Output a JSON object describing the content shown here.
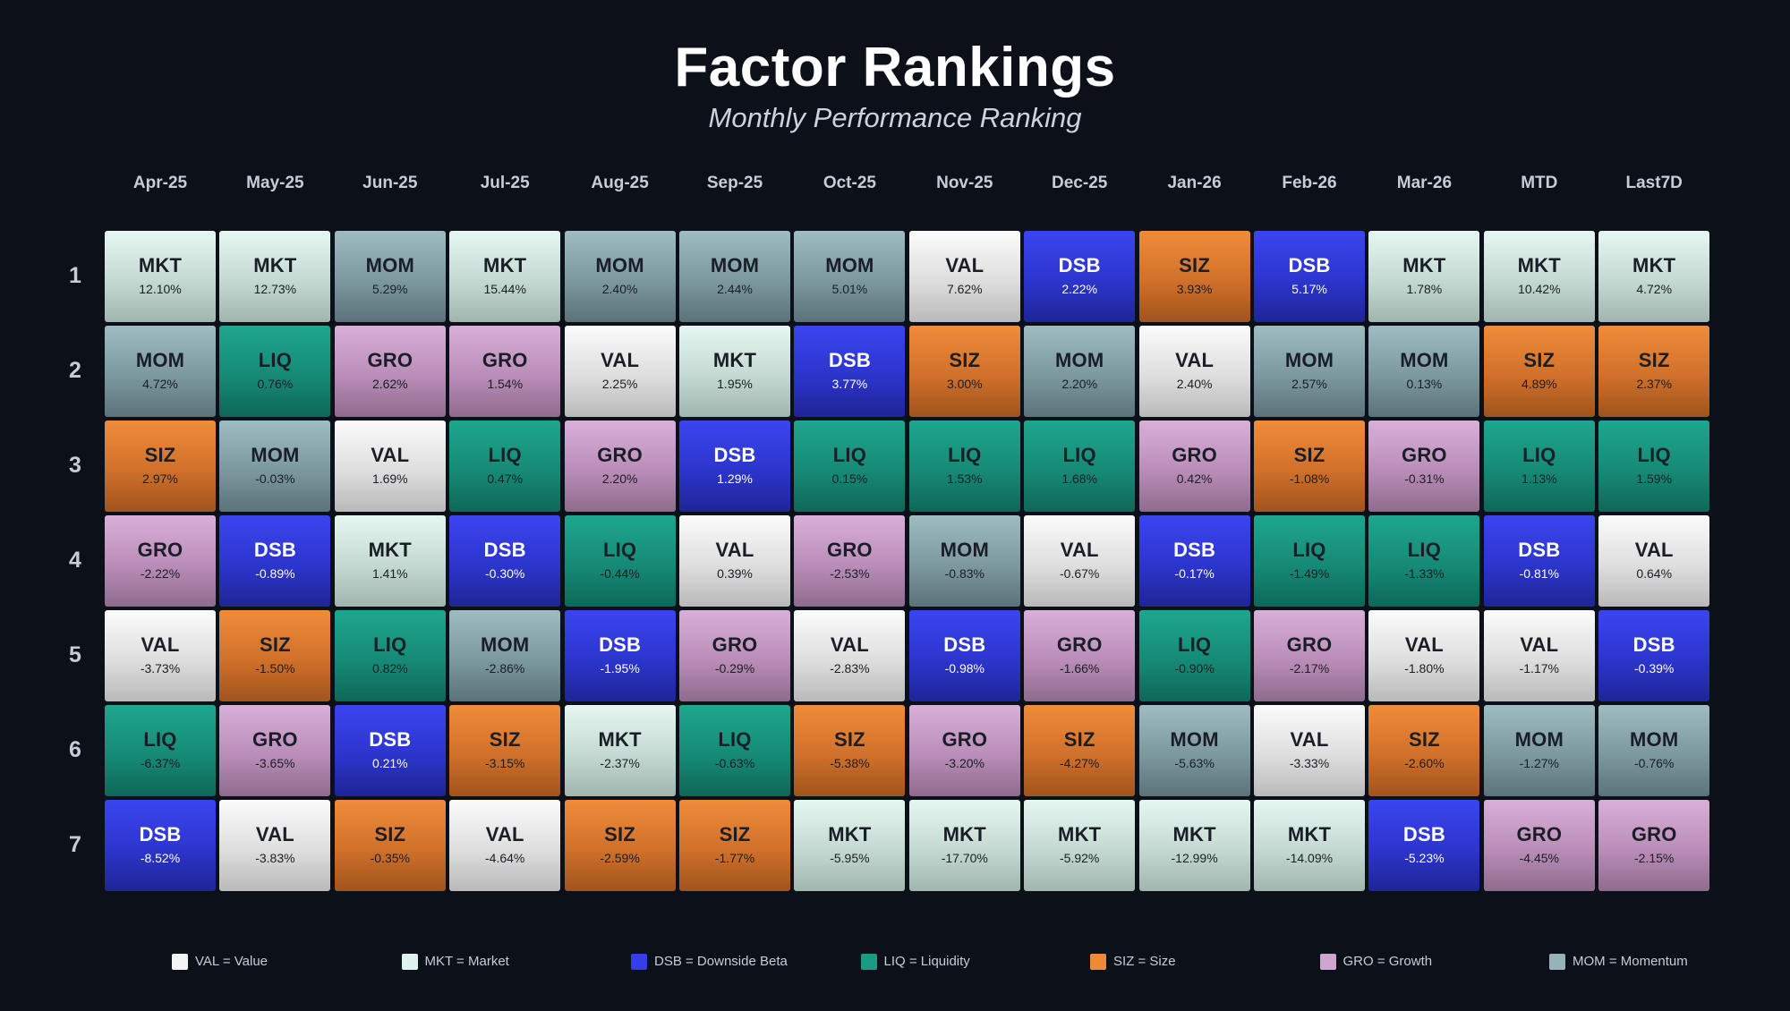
{
  "chart_data": {
    "type": "table",
    "title": "Factor Rankings",
    "subtitle": "Monthly Performance Ranking",
    "columns": [
      "Apr-25",
      "May-25",
      "Jun-25",
      "Jul-25",
      "Aug-25",
      "Sep-25",
      "Oct-25",
      "Nov-25",
      "Dec-25",
      "Jan-26",
      "Feb-26",
      "Mar-26",
      "MTD",
      "Last7D"
    ],
    "ranks": [
      "1",
      "2",
      "3",
      "4",
      "5",
      "6",
      "7"
    ],
    "cells": [
      [
        {
          "factor": "MKT",
          "value": "12.10%"
        },
        {
          "factor": "MKT",
          "value": "12.73%"
        },
        {
          "factor": "MOM",
          "value": "5.29%"
        },
        {
          "factor": "MKT",
          "value": "15.44%"
        },
        {
          "factor": "MOM",
          "value": "2.40%"
        },
        {
          "factor": "MOM",
          "value": "2.44%"
        },
        {
          "factor": "MOM",
          "value": "5.01%"
        },
        {
          "factor": "VAL",
          "value": "7.62%"
        },
        {
          "factor": "DSB",
          "value": "2.22%"
        },
        {
          "factor": "SIZ",
          "value": "3.93%"
        },
        {
          "factor": "DSB",
          "value": "5.17%"
        },
        {
          "factor": "MKT",
          "value": "1.78%"
        },
        {
          "factor": "MKT",
          "value": "10.42%"
        },
        {
          "factor": "MKT",
          "value": "4.72%"
        }
      ],
      [
        {
          "factor": "MOM",
          "value": "4.72%"
        },
        {
          "factor": "LIQ",
          "value": "0.76%"
        },
        {
          "factor": "GRO",
          "value": "2.62%"
        },
        {
          "factor": "GRO",
          "value": "1.54%"
        },
        {
          "factor": "VAL",
          "value": "2.25%"
        },
        {
          "factor": "MKT",
          "value": "1.95%"
        },
        {
          "factor": "DSB",
          "value": "3.77%"
        },
        {
          "factor": "SIZ",
          "value": "3.00%"
        },
        {
          "factor": "MOM",
          "value": "2.20%"
        },
        {
          "factor": "VAL",
          "value": "2.40%"
        },
        {
          "factor": "MOM",
          "value": "2.57%"
        },
        {
          "factor": "MOM",
          "value": "0.13%"
        },
        {
          "factor": "SIZ",
          "value": "4.89%"
        },
        {
          "factor": "SIZ",
          "value": "2.37%"
        }
      ],
      [
        {
          "factor": "SIZ",
          "value": "2.97%"
        },
        {
          "factor": "MOM",
          "value": "-0.03%"
        },
        {
          "factor": "VAL",
          "value": "1.69%"
        },
        {
          "factor": "LIQ",
          "value": "0.47%"
        },
        {
          "factor": "GRO",
          "value": "2.20%"
        },
        {
          "factor": "DSB",
          "value": "1.29%"
        },
        {
          "factor": "LIQ",
          "value": "0.15%"
        },
        {
          "factor": "LIQ",
          "value": "1.53%"
        },
        {
          "factor": "LIQ",
          "value": "1.68%"
        },
        {
          "factor": "GRO",
          "value": "0.42%"
        },
        {
          "factor": "SIZ",
          "value": "-1.08%"
        },
        {
          "factor": "GRO",
          "value": "-0.31%"
        },
        {
          "factor": "LIQ",
          "value": "1.13%"
        },
        {
          "factor": "LIQ",
          "value": "1.59%"
        }
      ],
      [
        {
          "factor": "GRO",
          "value": "-2.22%"
        },
        {
          "factor": "DSB",
          "value": "-0.89%"
        },
        {
          "factor": "MKT",
          "value": "1.41%"
        },
        {
          "factor": "DSB",
          "value": "-0.30%"
        },
        {
          "factor": "LIQ",
          "value": "-0.44%"
        },
        {
          "factor": "VAL",
          "value": "0.39%"
        },
        {
          "factor": "GRO",
          "value": "-2.53%"
        },
        {
          "factor": "MOM",
          "value": "-0.83%"
        },
        {
          "factor": "VAL",
          "value": "-0.67%"
        },
        {
          "factor": "DSB",
          "value": "-0.17%"
        },
        {
          "factor": "LIQ",
          "value": "-1.49%"
        },
        {
          "factor": "LIQ",
          "value": "-1.33%"
        },
        {
          "factor": "DSB",
          "value": "-0.81%"
        },
        {
          "factor": "VAL",
          "value": "0.64%"
        }
      ],
      [
        {
          "factor": "VAL",
          "value": "-3.73%"
        },
        {
          "factor": "SIZ",
          "value": "-1.50%"
        },
        {
          "factor": "LIQ",
          "value": "0.82%"
        },
        {
          "factor": "MOM",
          "value": "-2.86%"
        },
        {
          "factor": "DSB",
          "value": "-1.95%"
        },
        {
          "factor": "GRO",
          "value": "-0.29%"
        },
        {
          "factor": "VAL",
          "value": "-2.83%"
        },
        {
          "factor": "DSB",
          "value": "-0.98%"
        },
        {
          "factor": "GRO",
          "value": "-1.66%"
        },
        {
          "factor": "LIQ",
          "value": "-0.90%"
        },
        {
          "factor": "GRO",
          "value": "-2.17%"
        },
        {
          "factor": "VAL",
          "value": "-1.80%"
        },
        {
          "factor": "VAL",
          "value": "-1.17%"
        },
        {
          "factor": "DSB",
          "value": "-0.39%"
        }
      ],
      [
        {
          "factor": "LIQ",
          "value": "-6.37%"
        },
        {
          "factor": "GRO",
          "value": "-3.65%"
        },
        {
          "factor": "DSB",
          "value": "0.21%"
        },
        {
          "factor": "SIZ",
          "value": "-3.15%"
        },
        {
          "factor": "MKT",
          "value": "-2.37%"
        },
        {
          "factor": "LIQ",
          "value": "-0.63%"
        },
        {
          "factor": "SIZ",
          "value": "-5.38%"
        },
        {
          "factor": "GRO",
          "value": "-3.20%"
        },
        {
          "factor": "SIZ",
          "value": "-4.27%"
        },
        {
          "factor": "MOM",
          "value": "-5.63%"
        },
        {
          "factor": "VAL",
          "value": "-3.33%"
        },
        {
          "factor": "SIZ",
          "value": "-2.60%"
        },
        {
          "factor": "MOM",
          "value": "-1.27%"
        },
        {
          "factor": "MOM",
          "value": "-0.76%"
        }
      ],
      [
        {
          "factor": "DSB",
          "value": "-8.52%"
        },
        {
          "factor": "VAL",
          "value": "-3.83%"
        },
        {
          "factor": "SIZ",
          "value": "-0.35%"
        },
        {
          "factor": "VAL",
          "value": "-4.64%"
        },
        {
          "factor": "SIZ",
          "value": "-2.59%"
        },
        {
          "factor": "SIZ",
          "value": "-1.77%"
        },
        {
          "factor": "MKT",
          "value": "-5.95%"
        },
        {
          "factor": "MKT",
          "value": "-17.70%"
        },
        {
          "factor": "MKT",
          "value": "-5.92%"
        },
        {
          "factor": "MKT",
          "value": "-12.99%"
        },
        {
          "factor": "MKT",
          "value": "-14.09%"
        },
        {
          "factor": "DSB",
          "value": "-5.23%"
        },
        {
          "factor": "GRO",
          "value": "-4.45%"
        },
        {
          "factor": "GRO",
          "value": "-2.15%"
        }
      ]
    ],
    "legend": [
      {
        "code": "VAL",
        "label": "VAL = Value",
        "color": "#f4f4f4"
      },
      {
        "code": "MKT",
        "label": "MKT = Market",
        "color": "#dff3ee"
      },
      {
        "code": "DSB",
        "label": "DSB = Downside Beta",
        "color": "#3440e6"
      },
      {
        "code": "LIQ",
        "label": "LIQ = Liquidity",
        "color": "#1a9b86"
      },
      {
        "code": "SIZ",
        "label": "SIZ = Size",
        "color": "#ec8a38"
      },
      {
        "code": "GRO",
        "label": "GRO = Growth",
        "color": "#cfa6cf"
      },
      {
        "code": "MOM",
        "label": "MOM = Momentum",
        "color": "#95b3b9"
      }
    ]
  }
}
